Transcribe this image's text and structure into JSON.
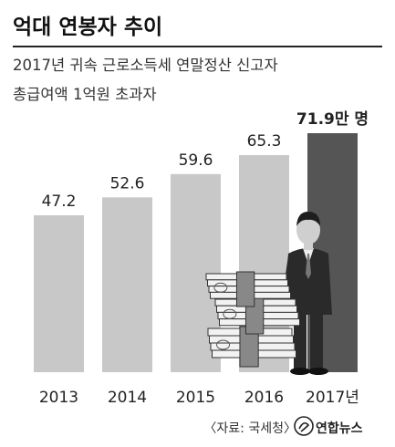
{
  "title": "억대 연봉자 추이",
  "subtitle_line1": "2017년 귀속 근로소득세 연말정산 신고자",
  "subtitle_line2": "총급여액 1억원 초과자",
  "source": "〈자료: 국세청〉",
  "logo": "연합뉴스",
  "chart_data": {
    "type": "bar",
    "title": "억대 연봉자 추이",
    "categories": [
      "2013",
      "2014",
      "2015",
      "2016",
      "2017년"
    ],
    "values": [
      47.2,
      52.6,
      59.6,
      65.3,
      71.9
    ],
    "value_labels": [
      "47.2",
      "52.6",
      "59.6",
      "65.3",
      "71.9만 명"
    ],
    "unit": "만 명",
    "ylim": [
      0,
      80
    ],
    "grid": false,
    "legend": "none",
    "colors": {
      "bar": "#c8c8c8",
      "highlight": "#555555",
      "value_text": "#222222"
    },
    "highlight_index": 4
  },
  "illustration": {
    "name": "businessman-with-money-stacks",
    "colors": {
      "suit": "#2a2a2a",
      "skin": "#cfcfcf",
      "money": "#f2f2f2",
      "band": "#888888"
    }
  }
}
